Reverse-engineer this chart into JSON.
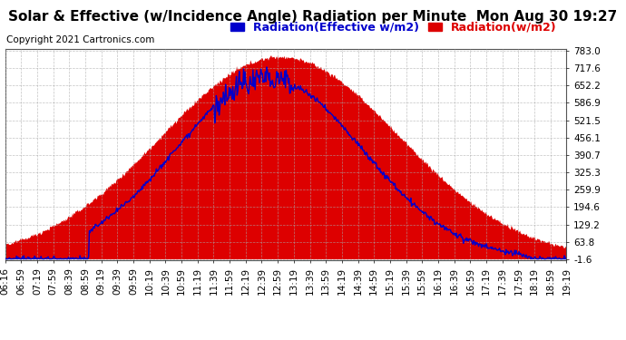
{
  "title": "Solar & Effective (w/Incidence Angle) Radiation per Minute  Mon Aug 30 19:27",
  "copyright": "Copyright 2021 Cartronics.com",
  "legend_effective": "Radiation(Effective w/m2)",
  "legend_radiation": "Radiation(w/m2)",
  "ymin": -1.6,
  "ymax": 783.0,
  "yticks": [
    -1.6,
    63.8,
    129.2,
    194.6,
    259.9,
    325.3,
    390.7,
    456.1,
    521.5,
    586.9,
    652.2,
    717.6,
    783.0
  ],
  "x_labels": [
    "06:16",
    "06:59",
    "07:19",
    "07:59",
    "08:39",
    "08:59",
    "09:19",
    "09:39",
    "09:59",
    "10:19",
    "10:39",
    "10:59",
    "11:19",
    "11:39",
    "11:59",
    "12:19",
    "12:39",
    "12:59",
    "13:19",
    "13:39",
    "13:59",
    "14:19",
    "14:39",
    "14:59",
    "15:19",
    "15:39",
    "15:59",
    "16:19",
    "16:39",
    "16:59",
    "17:19",
    "17:39",
    "17:59",
    "18:19",
    "18:59",
    "19:19"
  ],
  "background_color": "#ffffff",
  "plot_bg_color": "#ffffff",
  "fill_color": "#dd0000",
  "line_color": "#0000cc",
  "grid_color": "#aaaaaa",
  "title_color": "#000000",
  "title_fontsize": 11,
  "copyright_fontsize": 7.5,
  "legend_fontsize": 9,
  "tick_fontsize": 7.5
}
